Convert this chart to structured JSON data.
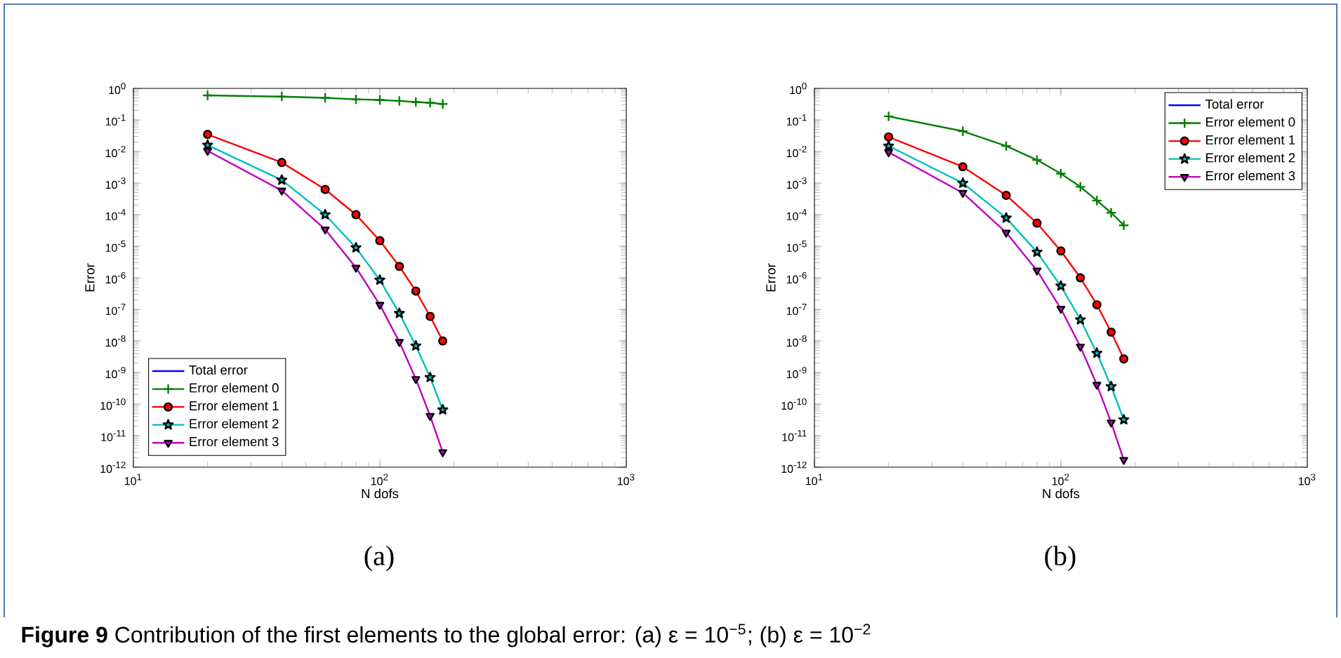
{
  "chart_data": [
    {
      "type": "line",
      "xlabel": "N dofs",
      "ylabel": "Error",
      "log": "xy",
      "xlim": [
        10,
        1000
      ],
      "ylim": [
        1e-12,
        1
      ],
      "xticks": [
        {
          "value": 10,
          "label": "10$^{1}$"
        },
        {
          "value": 100,
          "label": "10$^{2}$"
        },
        {
          "value": 1000,
          "label": "10$^{3}$"
        }
      ],
      "yticks": [
        {
          "value": 1e-12,
          "label": "10$^{-12}$"
        },
        {
          "value": 1e-11,
          "label": "10$^{-11}$"
        },
        {
          "value": 1e-10,
          "label": "10$^{-10}$"
        },
        {
          "value": 1e-09,
          "label": "10$^{-9}$"
        },
        {
          "value": 1e-08,
          "label": "10$^{-8}$"
        },
        {
          "value": 1e-07,
          "label": "10$^{-7}$"
        },
        {
          "value": 1e-06,
          "label": "10$^{-6}$"
        },
        {
          "value": 1e-05,
          "label": "10$^{-5}$"
        },
        {
          "value": 0.0001,
          "label": "10$^{-4}$"
        },
        {
          "value": 0.001,
          "label": "10$^{-3}$"
        },
        {
          "value": 0.01,
          "label": "10$^{-2}$"
        },
        {
          "value": 0.1,
          "label": "10$^{-1}$"
        },
        {
          "value": 1,
          "label": "10$^{0}$"
        }
      ],
      "legend": "bottom left",
      "grid": false,
      "x": [
        20,
        40,
        60,
        80,
        100,
        120,
        140,
        160,
        180
      ],
      "series": [
        {
          "name": "Total error",
          "color": "#0000ff",
          "marker": "none",
          "values": [
            null,
            null,
            null,
            null,
            null,
            null,
            null,
            null,
            null
          ]
        },
        {
          "name": "Error element 0",
          "color": "#008000",
          "marker": "cross",
          "values": [
            0.6,
            0.55,
            0.5,
            0.45,
            0.43,
            0.4,
            0.37,
            0.35,
            0.32
          ]
        },
        {
          "name": "Error element 1",
          "color": "#ff0000",
          "marker": "circle",
          "values": [
            0.035,
            0.0045,
            0.00063,
            0.0001,
            1.5e-05,
            2.3e-06,
            3.8e-07,
            6e-08,
            1e-08
          ]
        },
        {
          "name": "Error element 2",
          "color": "#00bfbf",
          "marker": "star",
          "values": [
            0.016,
            0.00125,
            0.0001,
            9e-06,
            8.5e-07,
            7.5e-08,
            7e-09,
            7e-10,
            6.6e-11
          ]
        },
        {
          "name": "Error element 3",
          "color": "#bf00bf",
          "marker": "triangle",
          "values": [
            0.0105,
            0.00058,
            3.4e-05,
            2.1e-06,
            1.4e-07,
            9.3e-09,
            6.2e-10,
            4.2e-11,
            3e-12
          ]
        }
      ],
      "annotations": [
        "(a)",
        "**Figure 9** Contribution of the first elements to the global error: (a) ε = 10$^{−5}$; (b) ε = 10$^{−2}$"
      ]
    },
    {
      "type": "line",
      "xlabel": "N dofs",
      "ylabel": "Error",
      "log": "xy",
      "xlim": [
        10,
        1000
      ],
      "ylim": [
        1e-12,
        1
      ],
      "xticks": [
        {
          "value": 10,
          "label": "10$^{1}$"
        },
        {
          "value": 100,
          "label": "10$^{2}$"
        },
        {
          "value": 1000,
          "label": "10$^{3}$"
        }
      ],
      "yticks": [
        {
          "value": 1e-12,
          "label": "10$^{-12}$"
        },
        {
          "value": 1e-11,
          "label": "10$^{-11}$"
        },
        {
          "value": 1e-10,
          "label": "10$^{-10}$"
        },
        {
          "value": 1e-09,
          "label": "10$^{-9}$"
        },
        {
          "value": 1e-08,
          "label": "10$^{-8}$"
        },
        {
          "value": 1e-07,
          "label": "10$^{-7}$"
        },
        {
          "value": 1e-06,
          "label": "10$^{-6}$"
        },
        {
          "value": 1e-05,
          "label": "10$^{-5}$"
        },
        {
          "value": 0.0001,
          "label": "10$^{-4}$"
        },
        {
          "value": 0.001,
          "label": "10$^{-3}$"
        },
        {
          "value": 0.01,
          "label": "10$^{-2}$"
        },
        {
          "value": 0.1,
          "label": "10$^{-1}$"
        },
        {
          "value": 1,
          "label": "10$^{0}$"
        }
      ],
      "legend": "top right",
      "grid": false,
      "x": [
        20,
        40,
        60,
        80,
        100,
        120,
        140,
        160,
        180
      ],
      "series": [
        {
          "name": "Total error",
          "color": "#0000ff",
          "marker": "none",
          "values": [
            null,
            null,
            null,
            null,
            null,
            null,
            null,
            null,
            null
          ]
        },
        {
          "name": "Error element 0",
          "color": "#008000",
          "marker": "cross",
          "values": [
            0.13,
            0.044,
            0.015,
            0.0054,
            0.002,
            0.00076,
            0.00028,
            0.000115,
            4.6e-05
          ]
        },
        {
          "name": "Error element 1",
          "color": "#ff0000",
          "marker": "circle",
          "values": [
            0.029,
            0.0033,
            0.00041,
            5.4e-05,
            7.1e-06,
            1e-06,
            1.4e-07,
            1.9e-08,
            2.7e-09
          ]
        },
        {
          "name": "Error element 2",
          "color": "#00bfbf",
          "marker": "star",
          "values": [
            0.015,
            0.001,
            7.9e-05,
            6.5e-06,
            5.5e-07,
            4.7e-08,
            4.1e-09,
            3.6e-10,
            3.2e-11
          ]
        },
        {
          "name": "Error element 3",
          "color": "#bf00bf",
          "marker": "triangle",
          "values": [
            0.0095,
            0.00049,
            2.7e-05,
            1.7e-06,
            1.05e-07,
            6.6e-09,
            4.1e-10,
            2.6e-11,
            1.7e-12
          ]
        }
      ],
      "annotations": [
        "(b)"
      ]
    }
  ]
}
